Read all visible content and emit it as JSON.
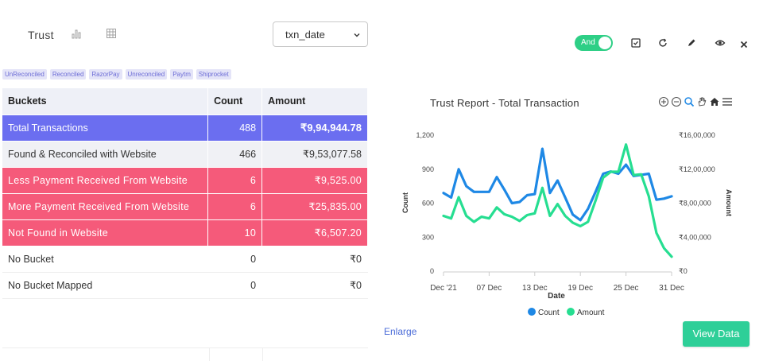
{
  "header": {
    "title": "Trust",
    "select_value": "txn_date"
  },
  "tags": [
    "UnReconciled",
    "Reconciled",
    "RazorPay",
    "Unreconciled",
    "Paytm",
    "Shiprocket"
  ],
  "table": {
    "headers": [
      "Buckets",
      "Count",
      "Amount"
    ],
    "rows": [
      {
        "bucket": "Total Transactions",
        "count": "488",
        "amount": "₹9,94,944.78",
        "style": "blue"
      },
      {
        "bucket": "Found & Reconciled with Website",
        "count": "466",
        "amount": "₹9,53,077.58",
        "style": "grey"
      },
      {
        "bucket": "Less Payment Received From Website",
        "count": "6",
        "amount": "₹9,525.00",
        "style": "red"
      },
      {
        "bucket": "More Payment Received From Website",
        "count": "6",
        "amount": "₹25,835.00",
        "style": "red"
      },
      {
        "bucket": "Not Found in Website",
        "count": "10",
        "amount": "₹6,507.20",
        "style": "red"
      },
      {
        "bucket": "No Bucket",
        "count": "0",
        "amount": "₹0",
        "style": "white"
      },
      {
        "bucket": "No Bucket Mapped",
        "count": "0",
        "amount": "₹0",
        "style": "white"
      }
    ]
  },
  "toolbar": {
    "toggle_label": "And"
  },
  "buttons": {
    "enlarge": "Enlarge",
    "view_data": "View Data"
  },
  "colors": {
    "count_series": "#1e88e5",
    "amount_series": "#26de91",
    "accent": "#2ecf86"
  },
  "chart_data": {
    "type": "line",
    "title": "Trust Report - Total Transaction",
    "xlabel": "Date",
    "ylabel_left": "Count",
    "ylabel_right": "Amount",
    "x_tick_labels": [
      "Dec '21",
      "07 Dec",
      "13 Dec",
      "19 Dec",
      "25 Dec",
      "31 Dec"
    ],
    "y_left_ticks": [
      "0",
      "300",
      "600",
      "900",
      "1,200"
    ],
    "y_right_ticks": [
      "₹0",
      "₹4,00,000",
      "₹8,00,000",
      "₹12,00,000",
      "₹16,00,000"
    ],
    "ylim_left": [
      0,
      1200
    ],
    "ylim_right": [
      0,
      1600000
    ],
    "x": [
      "01 Dec",
      "02 Dec",
      "03 Dec",
      "04 Dec",
      "05 Dec",
      "06 Dec",
      "07 Dec",
      "08 Dec",
      "09 Dec",
      "10 Dec",
      "11 Dec",
      "12 Dec",
      "13 Dec",
      "14 Dec",
      "15 Dec",
      "16 Dec",
      "17 Dec",
      "18 Dec",
      "19 Dec",
      "20 Dec",
      "21 Dec",
      "22 Dec",
      "23 Dec",
      "24 Dec",
      "25 Dec",
      "26 Dec",
      "27 Dec",
      "28 Dec",
      "29 Dec",
      "30 Dec",
      "31 Dec"
    ],
    "series": [
      {
        "name": "Count",
        "axis": "left",
        "values": [
          690,
          650,
          900,
          750,
          700,
          700,
          700,
          830,
          720,
          600,
          610,
          670,
          680,
          1080,
          690,
          800,
          650,
          500,
          450,
          550,
          700,
          860,
          880,
          860,
          940,
          840,
          850,
          860,
          630,
          640,
          660
        ]
      },
      {
        "name": "Amount",
        "axis": "right",
        "values": [
          650000,
          620000,
          870000,
          650000,
          580000,
          640000,
          620000,
          750000,
          670000,
          640000,
          590000,
          660000,
          680000,
          980000,
          650000,
          790000,
          650000,
          570000,
          530000,
          580000,
          830000,
          1100000,
          1170000,
          1170000,
          1490000,
          1130000,
          1140000,
          880000,
          450000,
          270000,
          170000
        ]
      }
    ],
    "legend": [
      "Count",
      "Amount"
    ],
    "legend_position": "bottom",
    "grid": false
  }
}
